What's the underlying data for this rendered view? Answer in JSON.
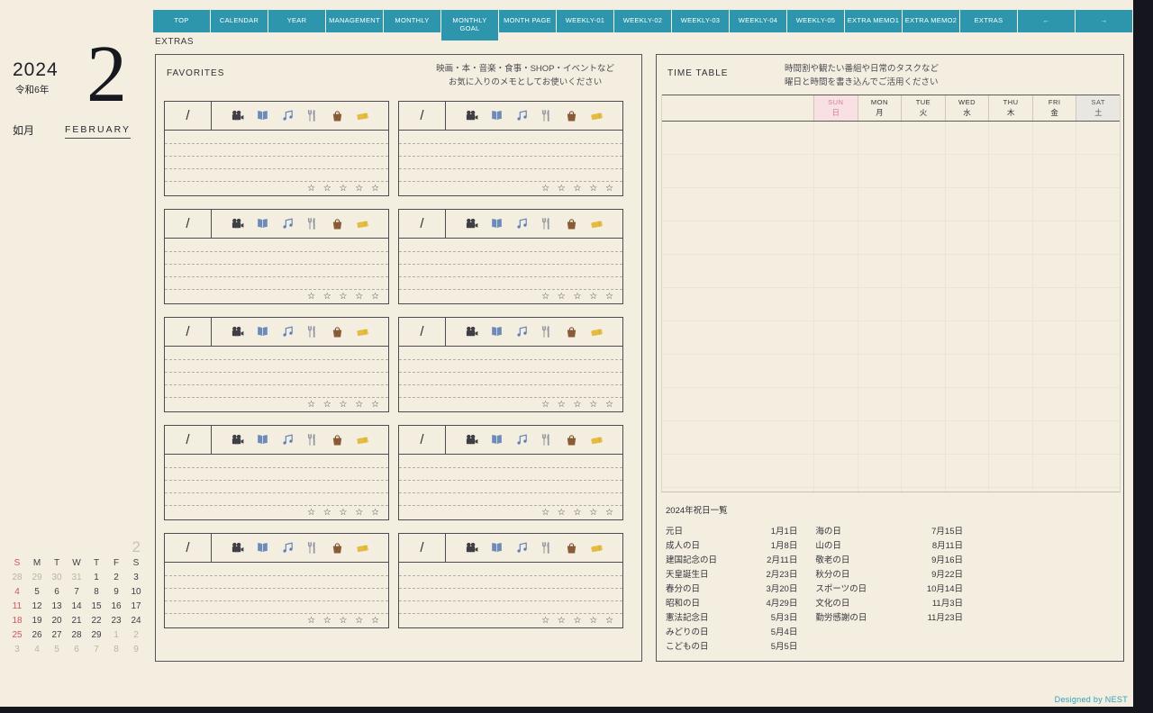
{
  "page": {
    "label": "EXTRAS",
    "credit": "Designed by NEST"
  },
  "nav": {
    "items": [
      "TOP",
      "CALENDAR",
      "YEAR",
      "MANAGEMENT",
      "MONTHLY",
      "MONTHLY GOAL",
      "MONTH PAGE",
      "WEEKLY-01",
      "WEEKLY-02",
      "WEEKLY-03",
      "WEEKLY-04",
      "WEEKLY-05",
      "EXTRA MEMO1",
      "EXTRA MEMO2",
      "EXTRAS",
      "←",
      "→"
    ]
  },
  "sidebar": {
    "year": "2024",
    "era": "令和6年",
    "month_number": "2",
    "month_kanji": "如月",
    "month_english": "FEBRUARY",
    "mini_calendar": {
      "day_headers": [
        "S",
        "M",
        "T",
        "W",
        "T",
        "F",
        "S"
      ],
      "weeks": [
        [
          {
            "d": "28",
            "t": "out"
          },
          {
            "d": "29",
            "t": "out"
          },
          {
            "d": "30",
            "t": "out"
          },
          {
            "d": "31",
            "t": "out"
          },
          {
            "d": "1",
            "t": "cur"
          },
          {
            "d": "2",
            "t": "cur"
          },
          {
            "d": "3",
            "t": "cur"
          }
        ],
        [
          {
            "d": "4",
            "t": "sun"
          },
          {
            "d": "5",
            "t": "cur"
          },
          {
            "d": "6",
            "t": "cur"
          },
          {
            "d": "7",
            "t": "cur"
          },
          {
            "d": "8",
            "t": "cur"
          },
          {
            "d": "9",
            "t": "cur"
          },
          {
            "d": "10",
            "t": "cur"
          }
        ],
        [
          {
            "d": "11",
            "t": "sun"
          },
          {
            "d": "12",
            "t": "cur"
          },
          {
            "d": "13",
            "t": "cur"
          },
          {
            "d": "14",
            "t": "cur"
          },
          {
            "d": "15",
            "t": "cur"
          },
          {
            "d": "16",
            "t": "cur"
          },
          {
            "d": "17",
            "t": "cur"
          }
        ],
        [
          {
            "d": "18",
            "t": "sun"
          },
          {
            "d": "19",
            "t": "cur"
          },
          {
            "d": "20",
            "t": "cur"
          },
          {
            "d": "21",
            "t": "cur"
          },
          {
            "d": "22",
            "t": "cur"
          },
          {
            "d": "23",
            "t": "cur"
          },
          {
            "d": "24",
            "t": "cur"
          }
        ],
        [
          {
            "d": "25",
            "t": "sun"
          },
          {
            "d": "26",
            "t": "cur"
          },
          {
            "d": "27",
            "t": "cur"
          },
          {
            "d": "28",
            "t": "cur"
          },
          {
            "d": "29",
            "t": "cur"
          },
          {
            "d": "1",
            "t": "out"
          },
          {
            "d": "2",
            "t": "out"
          }
        ],
        [
          {
            "d": "3",
            "t": "out"
          },
          {
            "d": "4",
            "t": "out"
          },
          {
            "d": "5",
            "t": "out"
          },
          {
            "d": "6",
            "t": "out"
          },
          {
            "d": "7",
            "t": "out"
          },
          {
            "d": "8",
            "t": "out"
          },
          {
            "d": "9",
            "t": "out"
          }
        ]
      ]
    }
  },
  "favorites": {
    "title": "FAVORITES",
    "note_line1": "映画・本・音楽・食事・SHOP・イベントなど",
    "note_line2": "お気に入りのメモとしてお使いください",
    "card": {
      "count": 10,
      "date_placeholder": "/",
      "icons": [
        {
          "name": "movie-camera-icon"
        },
        {
          "name": "open-book-icon"
        },
        {
          "name": "music-notes-icon"
        },
        {
          "name": "fork-knife-icon"
        },
        {
          "name": "handbag-icon"
        },
        {
          "name": "ticket-icon"
        }
      ],
      "stars": "☆ ☆ ☆ ☆ ☆"
    }
  },
  "timetable": {
    "title": "TIME TABLE",
    "note_line1": "時間割や観たい番組や日常のタスクなど",
    "note_line2": "曜日と時間を書き込んでご活用ください",
    "columns": [
      {
        "en": "SUN",
        "jp": "日",
        "type": "sun"
      },
      {
        "en": "MON",
        "jp": "月",
        "type": "normal"
      },
      {
        "en": "TUE",
        "jp": "火",
        "type": "normal"
      },
      {
        "en": "WED",
        "jp": "水",
        "type": "normal"
      },
      {
        "en": "THU",
        "jp": "木",
        "type": "normal"
      },
      {
        "en": "FRI",
        "jp": "金",
        "type": "normal"
      },
      {
        "en": "SAT",
        "jp": "土",
        "type": "sat"
      }
    ]
  },
  "holidays": {
    "title": "2024年祝日一覧",
    "rows": [
      {
        "name1": "元日",
        "date1": "1月1日",
        "name2": "海の日",
        "date2": "7月15日"
      },
      {
        "name1": "成人の日",
        "date1": "1月8日",
        "name2": "山の日",
        "date2": "8月11日"
      },
      {
        "name1": "建国記念の日",
        "date1": "2月11日",
        "name2": "敬老の日",
        "date2": "9月16日"
      },
      {
        "name1": "天皇誕生日",
        "date1": "2月23日",
        "name2": "秋分の日",
        "date2": "9月22日"
      },
      {
        "name1": "春分の日",
        "date1": "3月20日",
        "name2": "スポーツの日",
        "date2": "10月14日"
      },
      {
        "name1": "昭和の日",
        "date1": "4月29日",
        "name2": "文化の日",
        "date2": "11月3日"
      },
      {
        "name1": "憲法記念日",
        "date1": "5月3日",
        "name2": "勤労感謝の日",
        "date2": "11月23日"
      },
      {
        "name1": "みどりの日",
        "date1": "5月4日",
        "name2": "",
        "date2": ""
      },
      {
        "name1": "こどもの日",
        "date1": "5月5日",
        "name2": "",
        "date2": ""
      }
    ]
  },
  "colors": {
    "accent_teal": "#2d96ad",
    "credit_teal": "#2f9fb8",
    "sun_pink_bg": "#f8e0e4",
    "sun_red": "#d4808d",
    "sat_gray_bg": "#e8e7e1",
    "calendar_sunday_red": "#cf5560",
    "background_cream": "#f3eee0",
    "page_edge_dark": "#15151d"
  }
}
